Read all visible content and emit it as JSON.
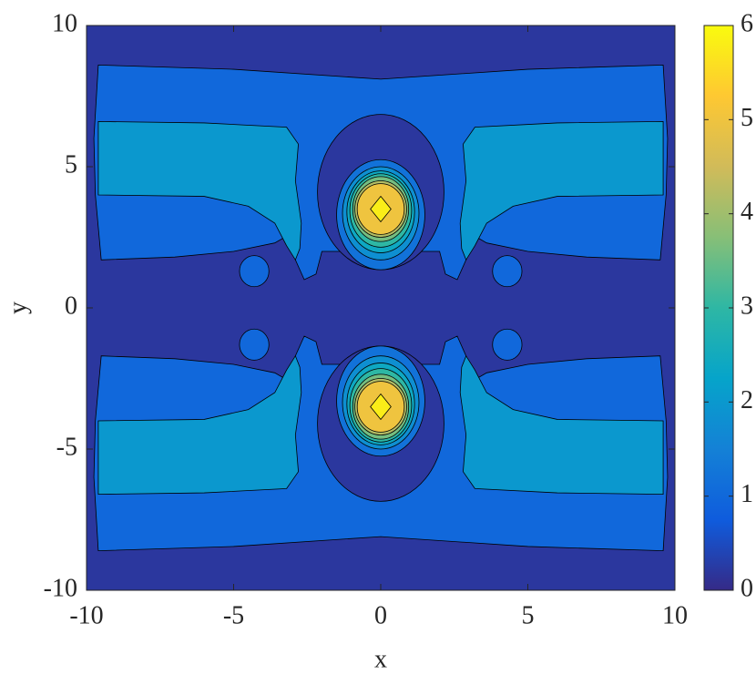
{
  "chart_data": {
    "type": "contour",
    "xlabel": "x",
    "ylabel": "y",
    "xlim": [
      -10,
      10
    ],
    "ylim": [
      -10,
      10
    ],
    "xticks": [
      -10,
      -5,
      0,
      5,
      10
    ],
    "yticks": [
      -10,
      -5,
      0,
      5,
      10
    ],
    "colorbar": {
      "lim": [
        0,
        6
      ],
      "ticks": [
        0,
        1,
        2,
        3,
        4,
        5,
        6
      ],
      "colormap": [
        "#352a87",
        "#0f5cdd",
        "#1481d6",
        "#06a4ca",
        "#2eb7a4",
        "#87bf77",
        "#d1bb59",
        "#fec832",
        "#f9fb0e"
      ]
    },
    "regions": [
      {
        "level": 0.2,
        "points": [
          [
            -10,
            -10
          ],
          [
            10,
            -10
          ],
          [
            10,
            10
          ],
          [
            -10,
            10
          ]
        ]
      },
      {
        "level": 1,
        "points": [
          [
            -9.6,
            8.6
          ],
          [
            -5,
            8.45
          ],
          [
            0,
            8.1
          ],
          [
            5,
            8.45
          ],
          [
            9.6,
            8.6
          ],
          [
            9.75,
            6
          ],
          [
            9.7,
            4
          ],
          [
            9.5,
            1.7
          ],
          [
            7,
            1.8
          ],
          [
            5,
            2.0
          ],
          [
            3.6,
            2.3
          ],
          [
            3.1,
            2.6
          ],
          [
            2.9,
            1.7
          ],
          [
            2.6,
            1.0
          ],
          [
            2.2,
            1.2
          ],
          [
            2.0,
            2.0
          ],
          [
            -2.0,
            2.0
          ],
          [
            -2.2,
            1.2
          ],
          [
            -2.6,
            1.0
          ],
          [
            -2.9,
            1.7
          ],
          [
            -3.1,
            2.6
          ],
          [
            -3.6,
            2.3
          ],
          [
            -5,
            2.0
          ],
          [
            -7,
            1.8
          ],
          [
            -9.5,
            1.7
          ],
          [
            -9.7,
            4
          ],
          [
            -9.75,
            6
          ]
        ]
      },
      {
        "level": 1,
        "points": [
          [
            -9.6,
            -8.6
          ],
          [
            -5,
            -8.45
          ],
          [
            0,
            -8.1
          ],
          [
            5,
            -8.45
          ],
          [
            9.6,
            -8.6
          ],
          [
            9.75,
            -6
          ],
          [
            9.7,
            -4
          ],
          [
            9.5,
            -1.7
          ],
          [
            7,
            -1.8
          ],
          [
            5,
            -2.0
          ],
          [
            3.6,
            -2.3
          ],
          [
            3.1,
            -2.6
          ],
          [
            2.9,
            -1.7
          ],
          [
            2.6,
            -1.0
          ],
          [
            2.2,
            -1.2
          ],
          [
            2.0,
            -2.0
          ],
          [
            -2.0,
            -2.0
          ],
          [
            -2.2,
            -1.2
          ],
          [
            -2.6,
            -1.0
          ],
          [
            -2.9,
            -1.7
          ],
          [
            -3.1,
            -2.6
          ],
          [
            -3.6,
            -2.3
          ],
          [
            -5,
            -2.0
          ],
          [
            -7,
            -1.8
          ],
          [
            -9.5,
            -1.7
          ],
          [
            -9.7,
            -4
          ],
          [
            -9.75,
            -6
          ]
        ]
      },
      {
        "level": 2,
        "points": [
          [
            -9.6,
            6.6
          ],
          [
            -6,
            6.55
          ],
          [
            -3.2,
            6.4
          ],
          [
            -2.8,
            5.8
          ],
          [
            -2.9,
            4.5
          ],
          [
            -2.7,
            3
          ],
          [
            -2.75,
            2.1
          ],
          [
            -2.9,
            1.7
          ],
          [
            -3.2,
            2.2
          ],
          [
            -3.6,
            3.0
          ],
          [
            -4.5,
            3.6
          ],
          [
            -6,
            3.95
          ],
          [
            -9.6,
            4.0
          ]
        ]
      },
      {
        "level": 2,
        "points": [
          [
            9.6,
            6.6
          ],
          [
            6,
            6.55
          ],
          [
            3.2,
            6.4
          ],
          [
            2.8,
            5.8
          ],
          [
            2.9,
            4.5
          ],
          [
            2.7,
            3
          ],
          [
            2.75,
            2.1
          ],
          [
            2.9,
            1.7
          ],
          [
            3.2,
            2.2
          ],
          [
            3.6,
            3.0
          ],
          [
            4.5,
            3.6
          ],
          [
            6,
            3.95
          ],
          [
            9.6,
            4.0
          ]
        ]
      },
      {
        "level": 2,
        "points": [
          [
            -9.6,
            -6.6
          ],
          [
            -6,
            -6.55
          ],
          [
            -3.2,
            -6.4
          ],
          [
            -2.8,
            -5.8
          ],
          [
            -2.9,
            -4.5
          ],
          [
            -2.7,
            -3
          ],
          [
            -2.75,
            -2.1
          ],
          [
            -2.9,
            -1.7
          ],
          [
            -3.2,
            -2.2
          ],
          [
            -3.6,
            -3.0
          ],
          [
            -4.5,
            -3.6
          ],
          [
            -6,
            -3.95
          ],
          [
            -9.6,
            -4.0
          ]
        ]
      },
      {
        "level": 2,
        "points": [
          [
            9.6,
            -6.6
          ],
          [
            6,
            -6.55
          ],
          [
            3.2,
            -6.4
          ],
          [
            2.8,
            -5.8
          ],
          [
            2.9,
            -4.5
          ],
          [
            2.7,
            -3
          ],
          [
            2.75,
            -2.1
          ],
          [
            2.9,
            -1.7
          ],
          [
            3.2,
            -2.2
          ],
          [
            3.6,
            -3.0
          ],
          [
            4.5,
            -3.6
          ],
          [
            6,
            -3.95
          ],
          [
            9.6,
            -4.0
          ]
        ]
      },
      {
        "level": 1,
        "center": [
          -4.3,
          1.3
        ],
        "radii": [
          0.5,
          0.55
        ]
      },
      {
        "level": 1,
        "center": [
          4.3,
          1.3
        ],
        "radii": [
          0.5,
          0.55
        ]
      },
      {
        "level": 1,
        "center": [
          -4.3,
          -1.3
        ],
        "radii": [
          0.5,
          0.55
        ]
      },
      {
        "level": 1,
        "center": [
          4.3,
          -1.3
        ],
        "radii": [
          0.5,
          0.55
        ]
      },
      {
        "level": 0.2,
        "center": [
          0,
          4.1
        ],
        "radii": [
          2.15,
          2.75
        ]
      },
      {
        "level": 0.2,
        "center": [
          0,
          -4.1
        ],
        "radii": [
          2.15,
          2.75
        ]
      },
      {
        "level": 1.2,
        "center": [
          0,
          3.3
        ],
        "radii": [
          1.5,
          1.95
        ]
      },
      {
        "level": 1.8,
        "center": [
          0,
          3.35
        ],
        "radii": [
          1.3,
          1.65
        ]
      },
      {
        "level": 2.4,
        "center": [
          0,
          3.4
        ],
        "radii": [
          1.15,
          1.45
        ]
      },
      {
        "level": 3.0,
        "center": [
          0,
          3.45
        ],
        "radii": [
          1.05,
          1.3
        ]
      },
      {
        "level": 3.6,
        "center": [
          0,
          3.5
        ],
        "radii": [
          0.95,
          1.15
        ]
      },
      {
        "level": 4.2,
        "center": [
          0,
          3.5
        ],
        "radii": [
          0.88,
          1.0
        ]
      },
      {
        "level": 5.0,
        "center": [
          0,
          3.5
        ],
        "radii": [
          0.8,
          0.9
        ]
      },
      {
        "level": 5.8,
        "points": [
          [
            0,
            3.95
          ],
          [
            0.35,
            3.5
          ],
          [
            0,
            3.05
          ],
          [
            -0.35,
            3.5
          ]
        ]
      },
      {
        "level": 1.2,
        "center": [
          0,
          -3.3
        ],
        "radii": [
          1.5,
          1.95
        ]
      },
      {
        "level": 1.8,
        "center": [
          0,
          -3.35
        ],
        "radii": [
          1.3,
          1.65
        ]
      },
      {
        "level": 2.4,
        "center": [
          0,
          -3.4
        ],
        "radii": [
          1.15,
          1.45
        ]
      },
      {
        "level": 3.0,
        "center": [
          0,
          -3.45
        ],
        "radii": [
          1.05,
          1.3
        ]
      },
      {
        "level": 3.6,
        "center": [
          0,
          -3.5
        ],
        "radii": [
          0.95,
          1.15
        ]
      },
      {
        "level": 4.2,
        "center": [
          0,
          -3.5
        ],
        "radii": [
          0.88,
          1.0
        ]
      },
      {
        "level": 5.0,
        "center": [
          0,
          -3.5
        ],
        "radii": [
          0.8,
          0.9
        ]
      },
      {
        "level": 5.8,
        "points": [
          [
            0,
            -3.05
          ],
          [
            0.35,
            -3.5
          ],
          [
            0,
            -3.95
          ],
          [
            -0.35,
            -3.5
          ]
        ]
      }
    ]
  }
}
